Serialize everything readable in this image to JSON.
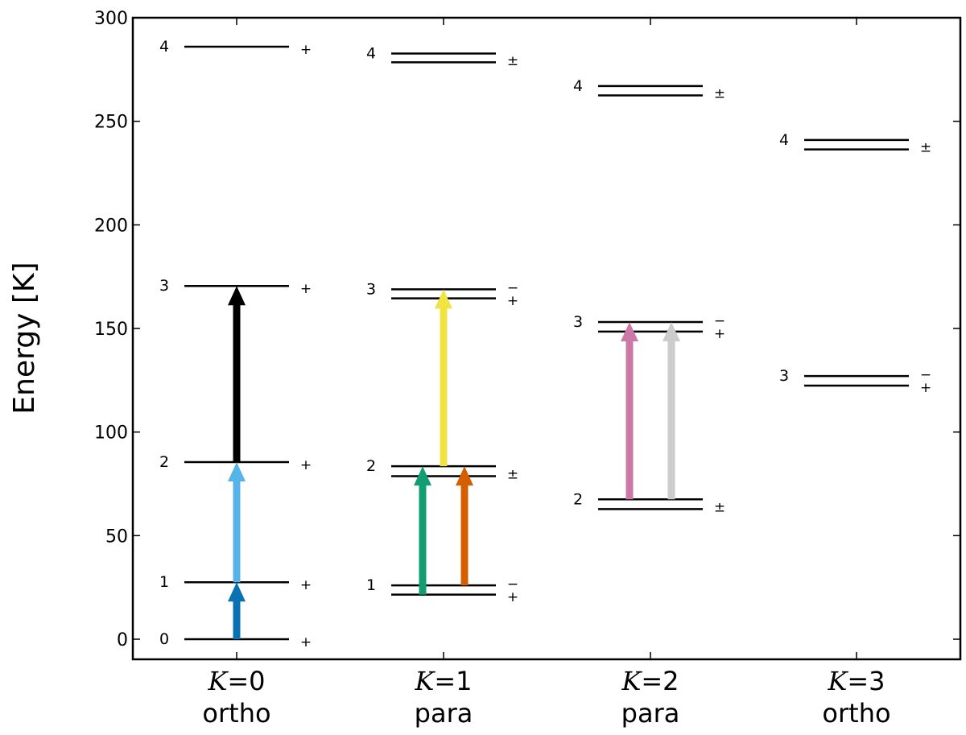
{
  "chart_data": {
    "type": "energy-level-diagram",
    "ylabel": "Energy  [K]",
    "ylim": [
      -10,
      300
    ],
    "yticks": [
      0,
      50,
      100,
      150,
      200,
      250,
      300
    ],
    "columns": [
      {
        "k_label": "K=0",
        "symmetry": "ortho",
        "levels": [
          {
            "J": "0",
            "energies": [
              0
            ],
            "parity": "+"
          },
          {
            "J": "1",
            "energies": [
              27.5
            ],
            "parity": "+"
          },
          {
            "J": "2",
            "energies": [
              85.5
            ],
            "parity": "+"
          },
          {
            "J": "3",
            "energies": [
              170.5
            ],
            "parity": "+"
          },
          {
            "J": "4",
            "energies": [
              286
            ],
            "parity": "+"
          }
        ]
      },
      {
        "k_label": "K=1",
        "symmetry": "para",
        "levels": [
          {
            "J": "1",
            "energies": [
              21.5,
              26
            ],
            "parity": "−\n+"
          },
          {
            "J": "2",
            "energies": [
              78.7,
              83.5
            ],
            "parity": "±"
          },
          {
            "J": "3",
            "energies": [
              164.5,
              168.9
            ],
            "parity": "−\n+"
          },
          {
            "J": "4",
            "energies": [
              278.5,
              282.7
            ],
            "parity": "±"
          }
        ]
      },
      {
        "k_label": "K=2",
        "symmetry": "para",
        "levels": [
          {
            "J": "2",
            "energies": [
              62.8,
              67.5
            ],
            "parity": "±"
          },
          {
            "J": "3",
            "energies": [
              148.5,
              153.1
            ],
            "parity": "−\n+"
          },
          {
            "J": "4",
            "energies": [
              262.5,
              267
            ],
            "parity": "±"
          }
        ]
      },
      {
        "k_label": "K=3",
        "symmetry": "ortho",
        "levels": [
          {
            "J": "3",
            "energies": [
              122.4,
              127
            ],
            "parity": "−\n+"
          },
          {
            "J": "4",
            "energies": [
              236.4,
              241
            ],
            "parity": "±"
          }
        ]
      }
    ],
    "transitions": [
      {
        "column": 0,
        "from": 0,
        "to": 27.5,
        "color": "#0a72b2"
      },
      {
        "column": 0,
        "from": 27.5,
        "to": 85.5,
        "color": "#56b4e9"
      },
      {
        "column": 0,
        "from": 85.5,
        "to": 170.5,
        "color": "#000000"
      },
      {
        "column": 1,
        "from": 21.5,
        "to": 83.5,
        "color": "#129e72"
      },
      {
        "column": 1,
        "from": 26,
        "to": 83.5,
        "color": "#d55e00"
      },
      {
        "column": 1,
        "from": 83.5,
        "to": 168.9,
        "color": "#f0e442"
      },
      {
        "column": 2,
        "from": 67.5,
        "to": 153.1,
        "color": "#cc79a7"
      },
      {
        "column": 2,
        "from": 67.5,
        "to": 153.1,
        "color": "#cccccc"
      }
    ]
  }
}
